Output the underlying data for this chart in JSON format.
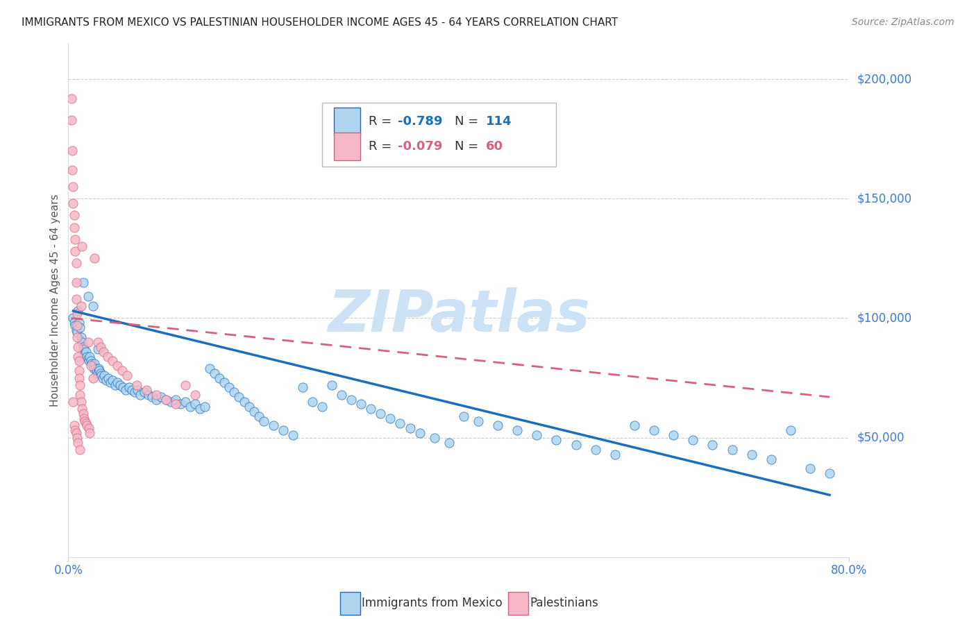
{
  "title": "IMMIGRANTS FROM MEXICO VS PALESTINIAN HOUSEHOLDER INCOME AGES 45 - 64 YEARS CORRELATION CHART",
  "source": "Source: ZipAtlas.com",
  "ylabel": "Householder Income Ages 45 - 64 years",
  "xlim": [
    0.0,
    0.8
  ],
  "ylim": [
    0,
    215000
  ],
  "yticks": [
    0,
    50000,
    100000,
    150000,
    200000
  ],
  "ytick_labels": [
    "",
    "$50,000",
    "$100,000",
    "$150,000",
    "$200,000"
  ],
  "xtick_left": "0.0%",
  "xtick_right": "80.0%",
  "mexico_line_color": "#1a6fbd",
  "pal_line_color": "#d9607a",
  "mexico_scatter_color": "#aed4f0",
  "pal_scatter_color": "#f5b8c8",
  "grid_color": "#cccccc",
  "watermark_text": "ZIPatlas",
  "watermark_color": "#cde3f5",
  "title_color": "#222222",
  "source_color": "#888888",
  "axis_label_color": "#555555",
  "ytick_color": "#3a7bd5",
  "xtick_color": "#3a7bd5",
  "legend_R1": "-0.789",
  "legend_N1": "114",
  "legend_R2": "-0.079",
  "legend_N2": "60",
  "legend_label1": "Immigrants from Mexico",
  "legend_label2": "Palestinians",
  "mexico_x": [
    0.005,
    0.006,
    0.007,
    0.008,
    0.009,
    0.01,
    0.011,
    0.012,
    0.013,
    0.014,
    0.015,
    0.016,
    0.017,
    0.018,
    0.019,
    0.02,
    0.021,
    0.022,
    0.023,
    0.024,
    0.025,
    0.026,
    0.027,
    0.028,
    0.029,
    0.03,
    0.031,
    0.032,
    0.033,
    0.034,
    0.035,
    0.037,
    0.039,
    0.041,
    0.043,
    0.045,
    0.048,
    0.05,
    0.053,
    0.056,
    0.059,
    0.062,
    0.065,
    0.068,
    0.071,
    0.074,
    0.078,
    0.082,
    0.086,
    0.09,
    0.095,
    0.1,
    0.105,
    0.11,
    0.115,
    0.12,
    0.125,
    0.13,
    0.135,
    0.14,
    0.145,
    0.15,
    0.155,
    0.16,
    0.165,
    0.17,
    0.175,
    0.18,
    0.185,
    0.19,
    0.195,
    0.2,
    0.21,
    0.22,
    0.23,
    0.24,
    0.25,
    0.26,
    0.27,
    0.28,
    0.29,
    0.3,
    0.31,
    0.32,
    0.33,
    0.34,
    0.35,
    0.36,
    0.375,
    0.39,
    0.405,
    0.42,
    0.44,
    0.46,
    0.48,
    0.5,
    0.52,
    0.54,
    0.56,
    0.58,
    0.6,
    0.62,
    0.64,
    0.66,
    0.68,
    0.7,
    0.72,
    0.74,
    0.76,
    0.78,
    0.015,
    0.02,
    0.025,
    0.03
  ],
  "mexico_y": [
    100000,
    98000,
    97000,
    95000,
    94000,
    103000,
    98000,
    96000,
    92000,
    90000,
    88000,
    87000,
    85000,
    86000,
    84000,
    83000,
    82000,
    84000,
    82000,
    81000,
    80000,
    79000,
    81000,
    79000,
    78000,
    77000,
    79000,
    78000,
    77000,
    76000,
    75000,
    76000,
    74000,
    75000,
    73000,
    74000,
    72000,
    73000,
    72000,
    71000,
    70000,
    71000,
    70000,
    69000,
    70000,
    68000,
    69000,
    68000,
    67000,
    66000,
    67000,
    66000,
    65000,
    66000,
    64000,
    65000,
    63000,
    64000,
    62000,
    63000,
    79000,
    77000,
    75000,
    73000,
    71000,
    69000,
    67000,
    65000,
    63000,
    61000,
    59000,
    57000,
    55000,
    53000,
    51000,
    71000,
    65000,
    63000,
    72000,
    68000,
    66000,
    64000,
    62000,
    60000,
    58000,
    56000,
    54000,
    52000,
    50000,
    48000,
    59000,
    57000,
    55000,
    53000,
    51000,
    49000,
    47000,
    45000,
    43000,
    55000,
    53000,
    51000,
    49000,
    47000,
    45000,
    43000,
    41000,
    53000,
    37000,
    35000,
    115000,
    109000,
    105000,
    87000
  ],
  "pal_x": [
    0.003,
    0.003,
    0.004,
    0.004,
    0.005,
    0.005,
    0.006,
    0.006,
    0.007,
    0.007,
    0.008,
    0.008,
    0.008,
    0.009,
    0.009,
    0.009,
    0.01,
    0.01,
    0.011,
    0.011,
    0.011,
    0.012,
    0.012,
    0.013,
    0.013,
    0.014,
    0.014,
    0.015,
    0.016,
    0.017,
    0.018,
    0.019,
    0.02,
    0.021,
    0.022,
    0.023,
    0.025,
    0.027,
    0.03,
    0.033,
    0.036,
    0.04,
    0.045,
    0.05,
    0.055,
    0.06,
    0.07,
    0.08,
    0.09,
    0.1,
    0.11,
    0.12,
    0.13,
    0.005,
    0.006,
    0.007,
    0.008,
    0.009,
    0.01,
    0.012
  ],
  "pal_y": [
    183000,
    192000,
    170000,
    162000,
    155000,
    148000,
    143000,
    138000,
    133000,
    128000,
    123000,
    115000,
    108000,
    102000,
    97000,
    92000,
    88000,
    84000,
    82000,
    78000,
    75000,
    72000,
    68000,
    65000,
    105000,
    62000,
    130000,
    60000,
    58000,
    57000,
    56000,
    55000,
    90000,
    54000,
    52000,
    80000,
    75000,
    125000,
    90000,
    88000,
    86000,
    84000,
    82000,
    80000,
    78000,
    76000,
    72000,
    70000,
    68000,
    66000,
    64000,
    72000,
    68000,
    65000,
    55000,
    53000,
    52000,
    50000,
    48000,
    45000
  ],
  "mexico_trend_x": [
    0.005,
    0.78
  ],
  "mexico_trend_y": [
    103000,
    26000
  ],
  "pal_trend_x": [
    0.003,
    0.78
  ],
  "pal_trend_y": [
    100000,
    67000
  ]
}
